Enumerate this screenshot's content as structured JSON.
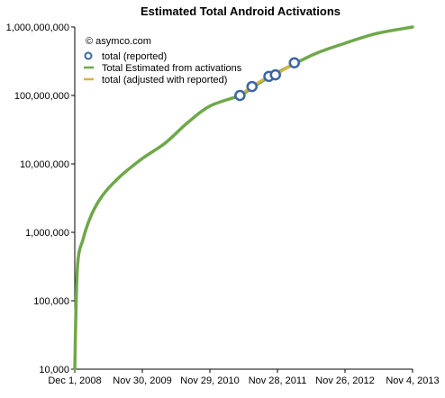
{
  "chart_data": {
    "type": "line",
    "title": "Estimated Total Android Activations",
    "annotation": "© asymco.com",
    "xlabel": "",
    "ylabel": "",
    "y_scale": "log",
    "ylim": [
      10000,
      1000000000
    ],
    "x_ticks": [
      "Dec 1, 2008",
      "Nov 30, 2009",
      "Nov 29, 2010",
      "Nov 28, 2011",
      "Nov 26, 2012",
      "Nov 4, 2013"
    ],
    "y_ticks": [
      {
        "value": 10000,
        "label": "10,000"
      },
      {
        "value": 100000,
        "label": "100,000"
      },
      {
        "value": 1000000,
        "label": "1,000,000"
      },
      {
        "value": 10000000,
        "label": "10,000,000"
      },
      {
        "value": 100000000,
        "label": "100,000,000"
      },
      {
        "value": 1000000000,
        "label": "1,000,000,000"
      }
    ],
    "grid": false,
    "legend_position": "top-left",
    "series": [
      {
        "name": "total (reported)",
        "kind": "marker",
        "color": "#3a66a8",
        "points": [
          {
            "x": "2011-05-10",
            "y": 100000000
          },
          {
            "x": "2011-07-14",
            "y": 135000000
          },
          {
            "x": "2011-10-13",
            "y": 190000000
          },
          {
            "x": "2011-11-17",
            "y": 200000000
          },
          {
            "x": "2012-02-27",
            "y": 300000000
          }
        ]
      },
      {
        "name": "Total Estimated from activations",
        "kind": "line",
        "color": "#6ea84a",
        "points": [
          {
            "x": "2008-12-01",
            "y": 10000
          },
          {
            "x": "2008-12-15",
            "y": 300000
          },
          {
            "x": "2009-01-15",
            "y": 800000
          },
          {
            "x": "2009-03-01",
            "y": 1800000
          },
          {
            "x": "2009-05-01",
            "y": 3500000
          },
          {
            "x": "2009-08-01",
            "y": 6500000
          },
          {
            "x": "2009-11-30",
            "y": 12000000
          },
          {
            "x": "2010-04-01",
            "y": 20000000
          },
          {
            "x": "2010-08-01",
            "y": 40000000
          },
          {
            "x": "2010-11-29",
            "y": 70000000
          },
          {
            "x": "2011-05-10",
            "y": 100000000
          },
          {
            "x": "2011-07-14",
            "y": 130000000
          },
          {
            "x": "2011-10-13",
            "y": 185000000
          },
          {
            "x": "2012-02-27",
            "y": 290000000
          },
          {
            "x": "2012-07-01",
            "y": 420000000
          },
          {
            "x": "2012-11-26",
            "y": 580000000
          },
          {
            "x": "2013-05-01",
            "y": 800000000
          },
          {
            "x": "2013-11-04",
            "y": 1000000000
          }
        ]
      },
      {
        "name": "total (adjusted with reported)",
        "kind": "line",
        "color": "#d9b340",
        "points": [
          {
            "x": "2011-05-10",
            "y": 100000000
          },
          {
            "x": "2011-07-14",
            "y": 135000000
          },
          {
            "x": "2011-10-13",
            "y": 190000000
          },
          {
            "x": "2011-11-17",
            "y": 200000000
          },
          {
            "x": "2012-02-27",
            "y": 300000000
          }
        ]
      }
    ]
  }
}
